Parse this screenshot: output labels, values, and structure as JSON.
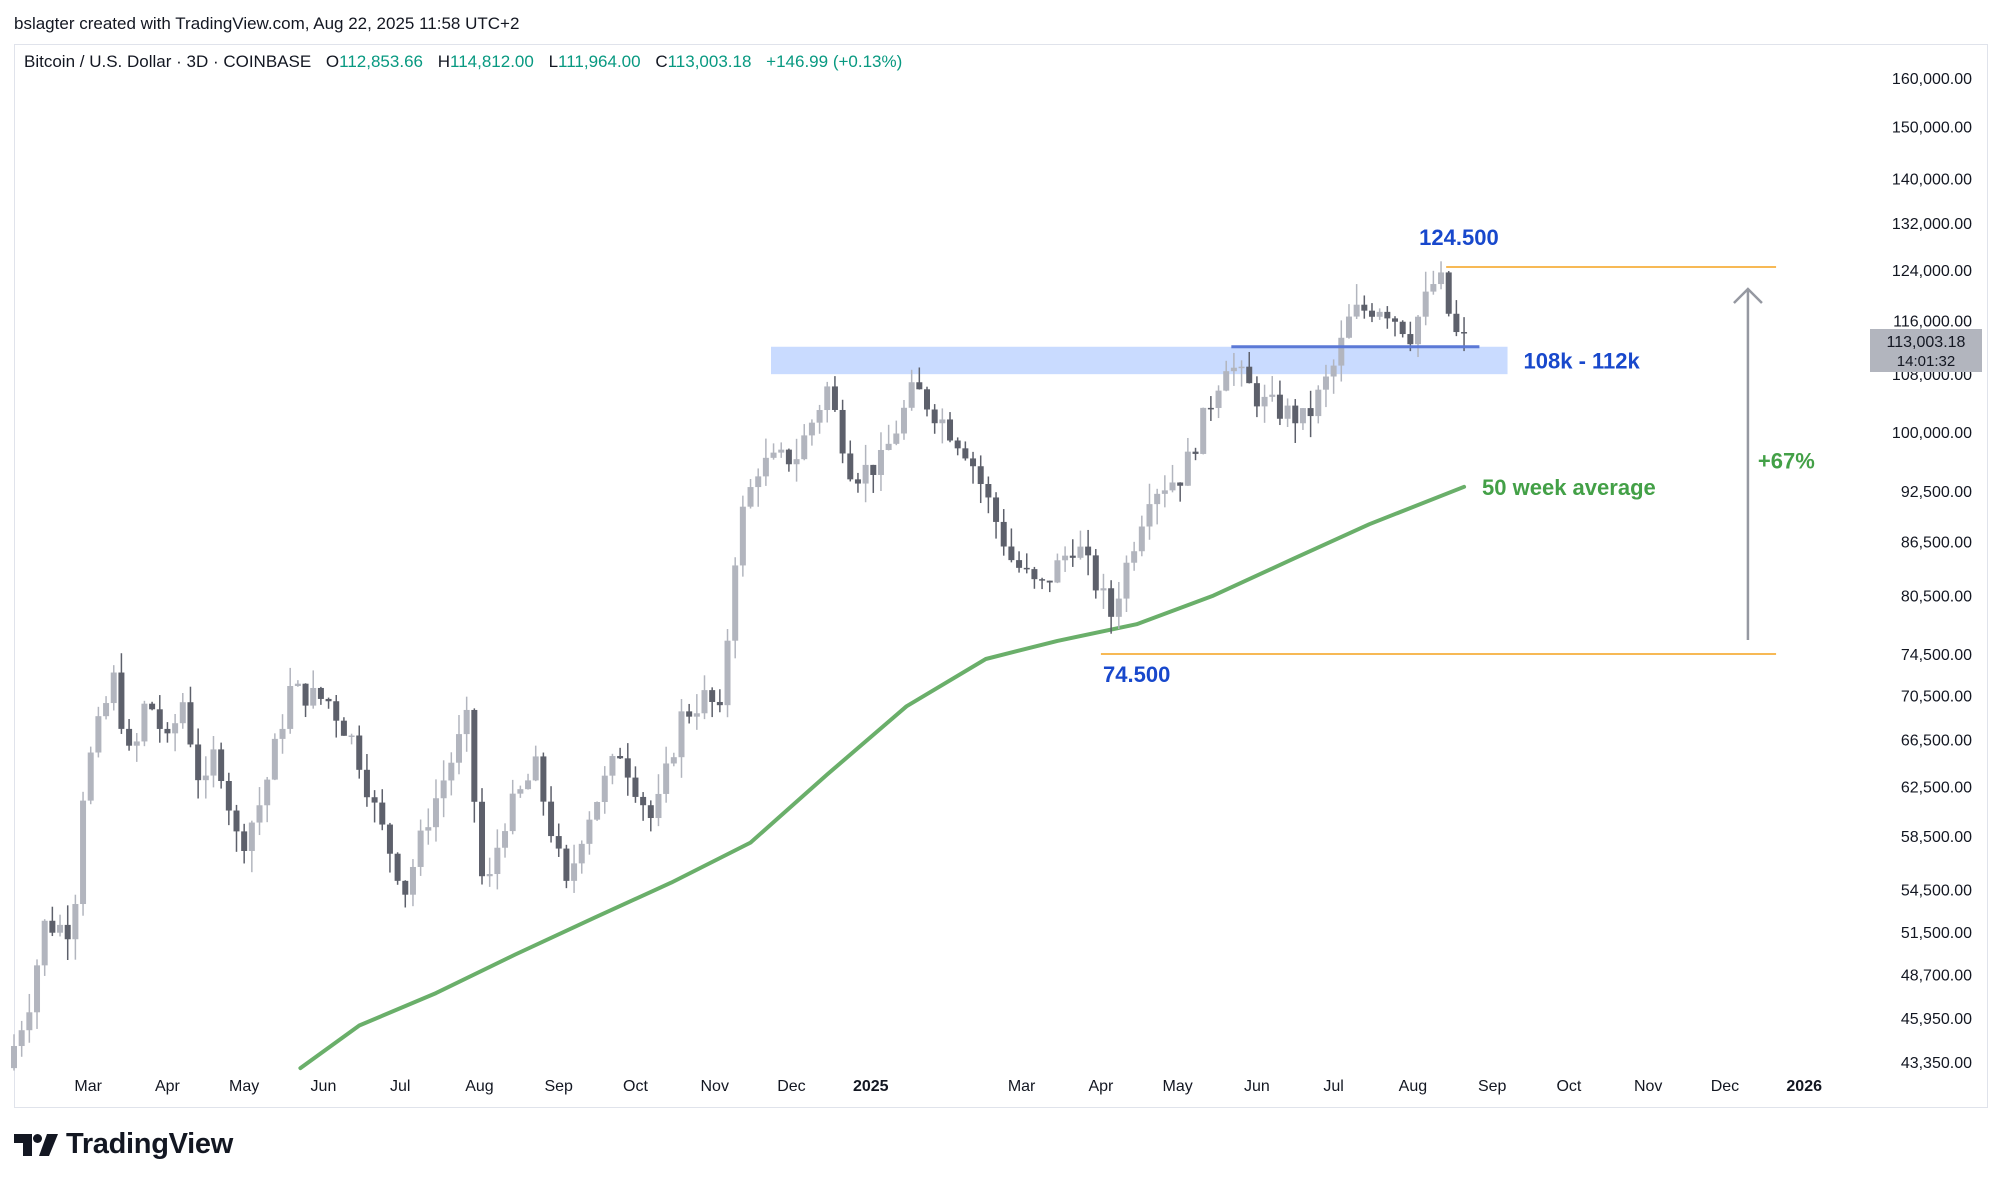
{
  "credit": "bslagter created with TradingView.com, Aug 22, 2025 11:58 UTC+2",
  "legend": {
    "symbol": "Bitcoin / U.S. Dollar · 3D · COINBASE",
    "o_label": "O",
    "o_value": "112,853.66",
    "h_label": "H",
    "h_value": "114,812.00",
    "l_label": "L",
    "l_value": "111,964.00",
    "c_label": "C",
    "c_value": "113,003.18",
    "change": "+146.99 (+0.13%)"
  },
  "price_badge": {
    "price": "113,003.18",
    "countdown": "14:01:32"
  },
  "brand": {
    "logo_text": "TradingView"
  },
  "colors": {
    "candle_up": "#b2b5be",
    "candle_down": "#5d606b",
    "ma": "#6aaf6a",
    "zone": "#c9dbff",
    "level": "#f7b955",
    "support_line": "#5b79d6",
    "annotation_blue": "#1848cc",
    "annotation_green": "#43a047",
    "arrow": "#9598a1"
  },
  "chart_data": {
    "type": "candlestick",
    "symbol": "Bitcoin / U.S. Dollar",
    "interval": "3D",
    "exchange": "COINBASE",
    "scale": "log",
    "ylim": [
      43350,
      160000
    ],
    "x_range": [
      "2024-02-01",
      "2026-01-15"
    ],
    "y_ticks": [
      {
        "value": 160000,
        "label": "160,000.00"
      },
      {
        "value": 150000,
        "label": "150,000.00"
      },
      {
        "value": 140000,
        "label": "140,000.00"
      },
      {
        "value": 132000,
        "label": "132,000.00"
      },
      {
        "value": 124000,
        "label": "124,000.00"
      },
      {
        "value": 116000,
        "label": "116,000.00"
      },
      {
        "value": 108000,
        "label": "108,000.00"
      },
      {
        "value": 100000,
        "label": "100,000.00"
      },
      {
        "value": 92500,
        "label": "92,500.00"
      },
      {
        "value": 86500,
        "label": "86,500.00"
      },
      {
        "value": 80500,
        "label": "80,500.00"
      },
      {
        "value": 74500,
        "label": "74,500.00"
      },
      {
        "value": 70500,
        "label": "70,500.00"
      },
      {
        "value": 66500,
        "label": "66,500.00"
      },
      {
        "value": 62500,
        "label": "62,500.00"
      },
      {
        "value": 58500,
        "label": "58,500.00"
      },
      {
        "value": 54500,
        "label": "54,500.00"
      },
      {
        "value": 51500,
        "label": "51,500.00"
      },
      {
        "value": 48700,
        "label": "48,700.00"
      },
      {
        "value": 45950,
        "label": "45,950.00"
      },
      {
        "value": 43350,
        "label": "43,350.00"
      }
    ],
    "x_ticks": [
      {
        "date": "2024-03-01",
        "label": "Mar",
        "bold": false
      },
      {
        "date": "2024-04-01",
        "label": "Apr",
        "bold": false
      },
      {
        "date": "2024-05-01",
        "label": "May",
        "bold": false
      },
      {
        "date": "2024-06-01",
        "label": "Jun",
        "bold": false
      },
      {
        "date": "2024-07-01",
        "label": "Jul",
        "bold": false
      },
      {
        "date": "2024-08-01",
        "label": "Aug",
        "bold": false
      },
      {
        "date": "2024-09-01",
        "label": "Sep",
        "bold": false
      },
      {
        "date": "2024-10-01",
        "label": "Oct",
        "bold": false
      },
      {
        "date": "2024-11-01",
        "label": "Nov",
        "bold": false
      },
      {
        "date": "2024-12-01",
        "label": "Dec",
        "bold": false
      },
      {
        "date": "2025-01-01",
        "label": "2025",
        "bold": true
      },
      {
        "date": "2025-03-01",
        "label": "Mar",
        "bold": false
      },
      {
        "date": "2025-04-01",
        "label": "Apr",
        "bold": false
      },
      {
        "date": "2025-05-01",
        "label": "May",
        "bold": false
      },
      {
        "date": "2025-06-01",
        "label": "Jun",
        "bold": false
      },
      {
        "date": "2025-07-01",
        "label": "Jul",
        "bold": false
      },
      {
        "date": "2025-08-01",
        "label": "Aug",
        "bold": false
      },
      {
        "date": "2025-09-01",
        "label": "Sep",
        "bold": false
      },
      {
        "date": "2025-10-01",
        "label": "Oct",
        "bold": false
      },
      {
        "date": "2025-11-01",
        "label": "Nov",
        "bold": false
      },
      {
        "date": "2025-12-01",
        "label": "Dec",
        "bold": false
      },
      {
        "date": "2026-01-01",
        "label": "2026",
        "bold": true
      }
    ],
    "price_path": [
      [
        "2024-01-31",
        43000
      ],
      [
        "2024-02-09",
        47000
      ],
      [
        "2024-02-15",
        52000
      ],
      [
        "2024-02-26",
        51800
      ],
      [
        "2024-03-01",
        62000
      ],
      [
        "2024-03-05",
        66000
      ],
      [
        "2024-03-13",
        72000
      ],
      [
        "2024-03-20",
        64000
      ],
      [
        "2024-03-26",
        70500
      ],
      [
        "2024-04-03",
        66000
      ],
      [
        "2024-04-09",
        70000
      ],
      [
        "2024-04-17",
        61500
      ],
      [
        "2024-04-22",
        66000
      ],
      [
        "2024-05-01",
        57500
      ],
      [
        "2024-05-10",
        61500
      ],
      [
        "2024-05-21",
        71000
      ],
      [
        "2024-06-05",
        70000
      ],
      [
        "2024-06-15",
        66200
      ],
      [
        "2024-06-24",
        60000
      ],
      [
        "2024-07-05",
        54500
      ],
      [
        "2024-07-14",
        60000
      ],
      [
        "2024-07-29",
        68000
      ],
      [
        "2024-08-05",
        53500
      ],
      [
        "2024-08-12",
        59500
      ],
      [
        "2024-08-25",
        64000
      ],
      [
        "2024-09-06",
        54500
      ],
      [
        "2024-09-13",
        59500
      ],
      [
        "2024-09-27",
        65500
      ],
      [
        "2024-10-10",
        59500
      ],
      [
        "2024-10-21",
        68500
      ],
      [
        "2024-10-31",
        70500
      ],
      [
        "2024-11-05",
        68500
      ],
      [
        "2024-11-12",
        88000
      ],
      [
        "2024-11-20",
        95500
      ],
      [
        "2024-12-05",
        97000
      ],
      [
        "2024-12-17",
        106000
      ],
      [
        "2024-12-27",
        94500
      ],
      [
        "2025-01-07",
        96000
      ],
      [
        "2025-01-20",
        106000
      ],
      [
        "2025-01-30",
        102000
      ],
      [
        "2025-02-10",
        97500
      ],
      [
        "2025-02-27",
        84500
      ],
      [
        "2025-03-10",
        81000
      ],
      [
        "2025-03-24",
        86500
      ],
      [
        "2025-04-07",
        78500
      ],
      [
        "2025-04-22",
        92500
      ],
      [
        "2025-05-05",
        94500
      ],
      [
        "2025-05-22",
        110000
      ],
      [
        "2025-06-05",
        104000
      ],
      [
        "2025-06-22",
        101500
      ],
      [
        "2025-07-03",
        109000
      ],
      [
        "2025-07-10",
        117000
      ],
      [
        "2025-07-22",
        118500
      ],
      [
        "2025-08-02",
        114000
      ],
      [
        "2025-08-13",
        123500
      ],
      [
        "2025-08-19",
        114000
      ],
      [
        "2025-08-22",
        113003.18
      ]
    ],
    "moving_average": {
      "label": "50 week average",
      "points": [
        [
          "2024-05-23",
          43000
        ],
        [
          "2024-06-15",
          45500
        ],
        [
          "2024-07-15",
          47500
        ],
        [
          "2024-08-15",
          50000
        ],
        [
          "2024-09-15",
          52500
        ],
        [
          "2024-10-15",
          55000
        ],
        [
          "2024-11-15",
          58000
        ],
        [
          "2024-12-15",
          63500
        ],
        [
          "2025-01-15",
          69500
        ],
        [
          "2025-02-15",
          74000
        ],
        [
          "2025-03-15",
          75800
        ],
        [
          "2025-04-15",
          77500
        ],
        [
          "2025-05-15",
          80500
        ],
        [
          "2025-06-15",
          84500
        ],
        [
          "2025-07-15",
          88500
        ],
        [
          "2025-08-21",
          93000
        ]
      ]
    },
    "resistance_zone": {
      "label": "108k - 112k",
      "low": 108000,
      "high": 112000,
      "from": "2024-11-23",
      "to": "2025-09-07"
    },
    "support_line": {
      "value": 112000,
      "from": "2025-05-22",
      "to": "2025-08-27"
    },
    "levels": [
      {
        "label": "124.500",
        "value": 124500,
        "from": "2025-08-14",
        "to": "2025-12-21"
      },
      {
        "label": "74.500",
        "value": 74500,
        "from": "2025-04-01",
        "to": "2025-12-21"
      }
    ],
    "range_arrow": {
      "label": "+67%",
      "from": 74500,
      "to": 124500,
      "date": "2025-12-10"
    }
  }
}
